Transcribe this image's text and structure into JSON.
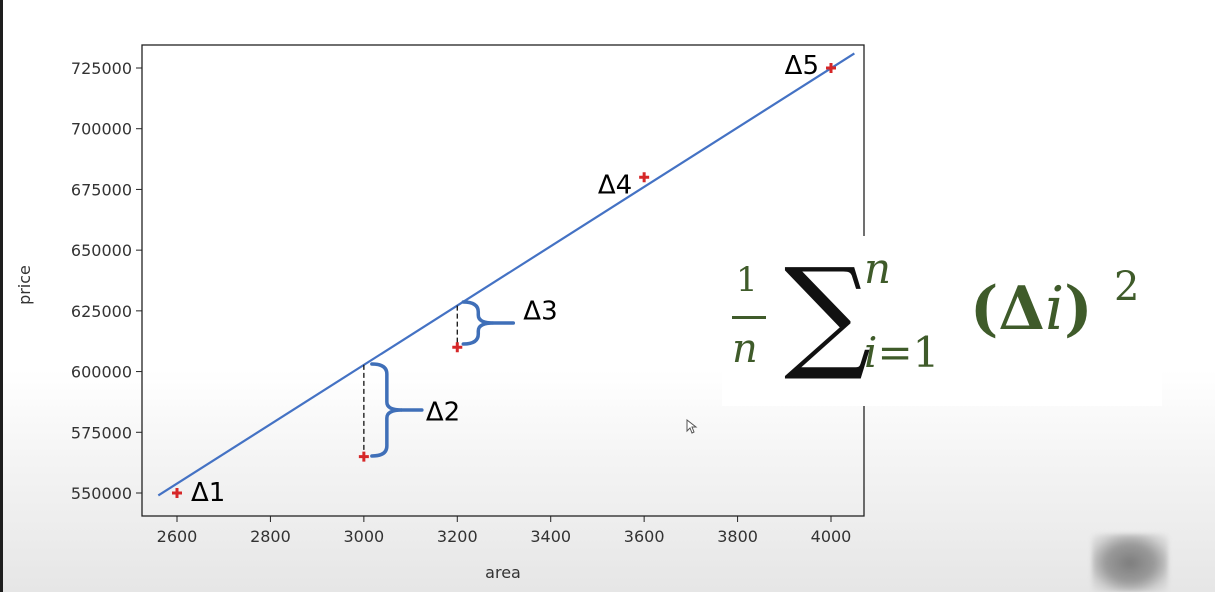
{
  "chart_data": {
    "type": "scatter",
    "xlabel": "area",
    "ylabel": "price",
    "xlim": [
      2550,
      4070
    ],
    "ylim": [
      540000,
      735000
    ],
    "x_ticks": [
      2600,
      2800,
      3000,
      3200,
      3400,
      3600,
      3800,
      4000
    ],
    "y_ticks": [
      550000,
      575000,
      600000,
      625000,
      650000,
      675000,
      700000,
      725000
    ],
    "points": {
      "x": [
        2600,
        3000,
        3200,
        3600,
        4000
      ],
      "y": [
        550000,
        565000,
        610000,
        680000,
        725000
      ]
    },
    "fit_line": {
      "x": [
        2560,
        4050
      ],
      "y": [
        549000,
        731000
      ]
    },
    "residual_labels": [
      "Δ1",
      "Δ2",
      "Δ3",
      "Δ4",
      "Δ5"
    ],
    "marker_color": "#d62728",
    "line_color": "#4472c4",
    "bracket_color": "#3f6fb8"
  },
  "formula": {
    "numerator": "1",
    "denominator": "n",
    "sigma": "∑",
    "upper_limit": "n",
    "lower_var": "i",
    "lower_rest": "=1",
    "term_open": "(Δ",
    "term_index": "i",
    "term_close": ")",
    "power": "2",
    "color": "#3f5b2a"
  }
}
